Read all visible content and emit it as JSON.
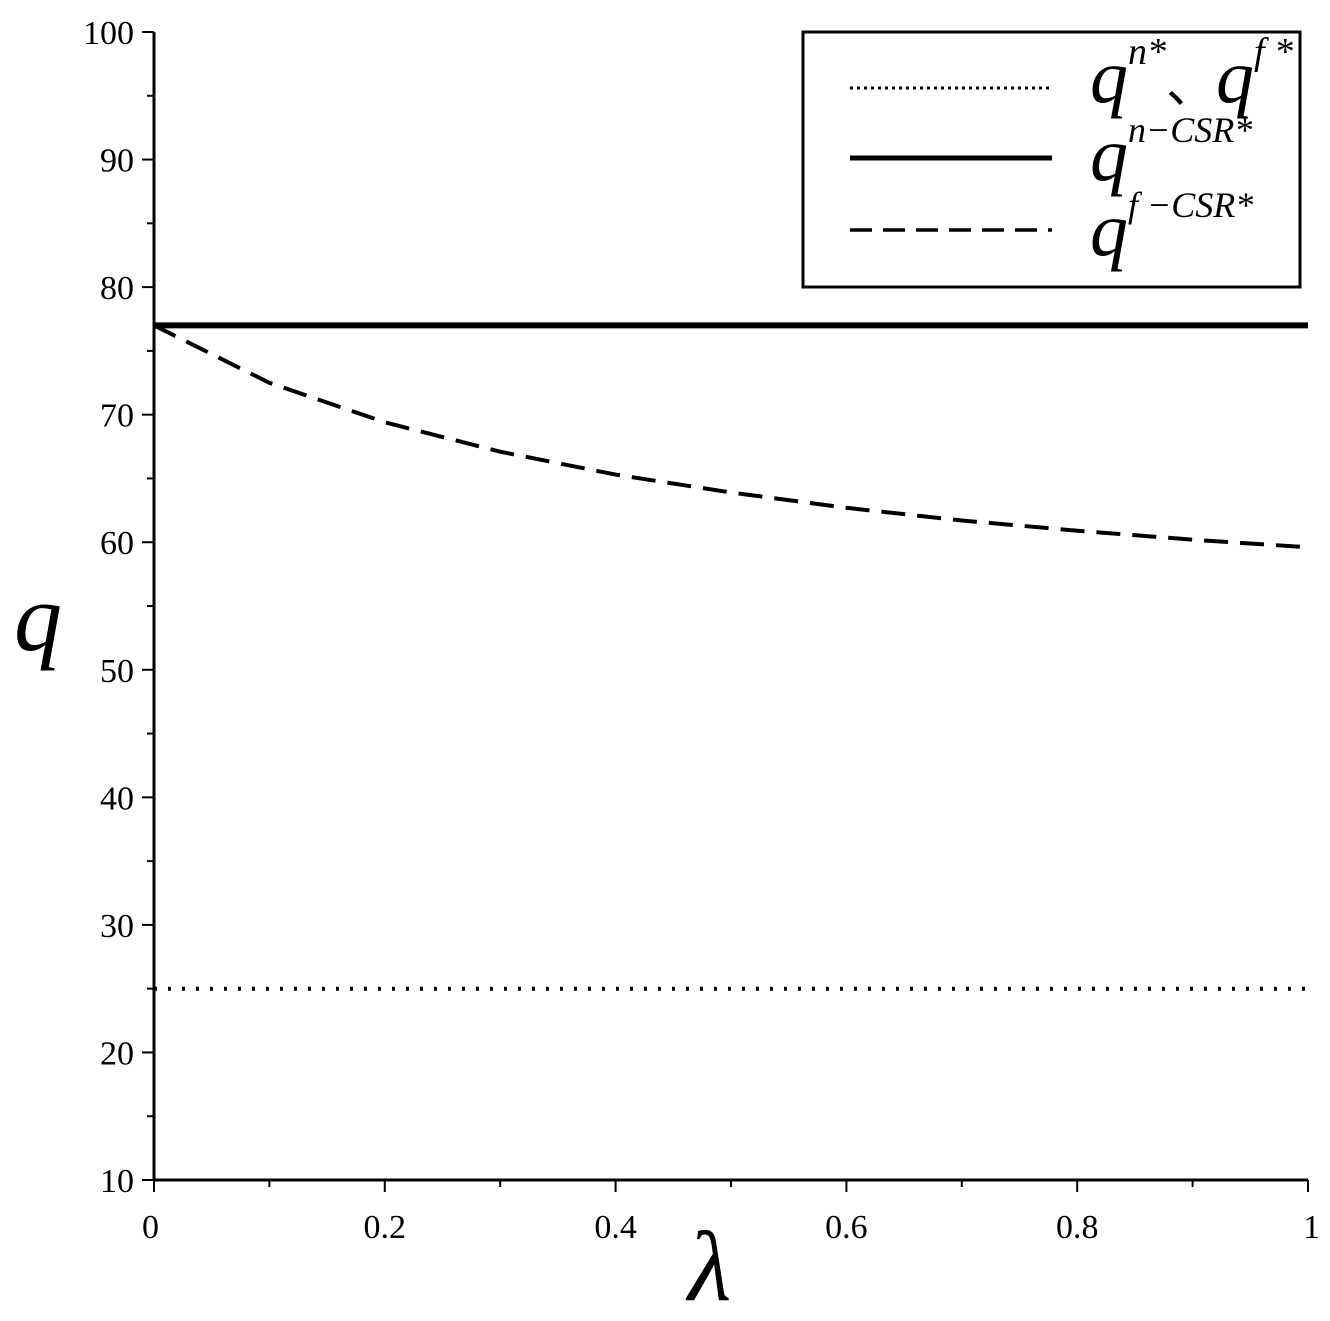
{
  "chart_data": {
    "type": "line",
    "xlabel": "λ",
    "ylabel": "q",
    "xlim": [
      0,
      1
    ],
    "ylim": [
      10,
      100
    ],
    "x_ticks": [
      "0",
      "0.2",
      "0.4",
      "0.6",
      "0.8",
      "1"
    ],
    "y_ticks": [
      "10",
      "20",
      "30",
      "40",
      "50",
      "60",
      "70",
      "80",
      "90",
      "100"
    ],
    "grid": false,
    "legend_position": "top-right",
    "series": [
      {
        "id": "qn-qf",
        "label_base": "q",
        "label_sup1": "n*",
        "label_sep": "、",
        "label_base2": "q",
        "label_sup2": "f *",
        "style": "dotted",
        "x": [
          0,
          1
        ],
        "y": [
          25,
          25
        ]
      },
      {
        "id": "qn-csr",
        "label_base": "q",
        "label_sup": "n−CSR*",
        "style": "solid",
        "x": [
          0,
          1
        ],
        "y": [
          77,
          77
        ]
      },
      {
        "id": "qf-csr",
        "label_base": "q",
        "label_sup": "f −CSR*",
        "style": "dashed",
        "x": [
          0,
          0.1,
          0.2,
          0.3,
          0.4,
          0.5,
          0.6,
          0.7,
          0.8,
          0.9,
          1.0
        ],
        "y": [
          77,
          72.5,
          69.4,
          67.1,
          65.3,
          63.9,
          62.7,
          61.7,
          60.9,
          60.2,
          59.6
        ]
      }
    ]
  }
}
